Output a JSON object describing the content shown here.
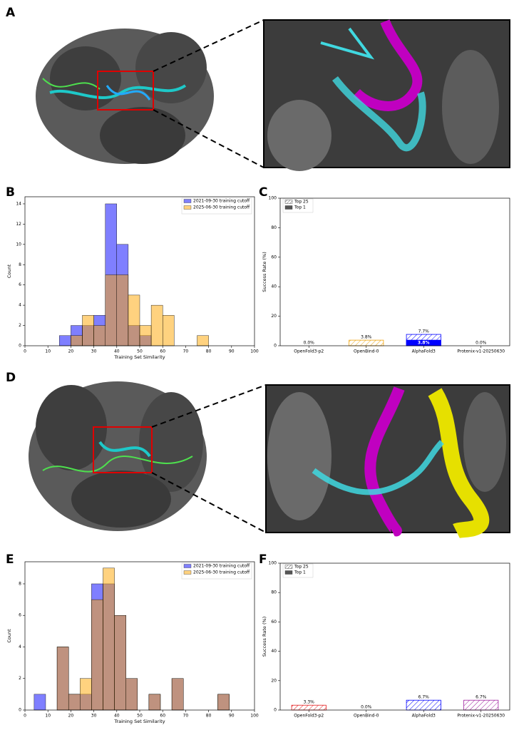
{
  "panel_labels": [
    "A",
    "B",
    "C",
    "D",
    "E",
    "F"
  ],
  "chart_data": [
    {
      "type": "histogram",
      "xlabel": "Training Set Similarity",
      "ylabel": "Count",
      "xlim": [
        0,
        100
      ],
      "xticks": [
        0,
        10,
        20,
        30,
        40,
        50,
        60,
        70,
        80,
        90,
        100
      ],
      "ylim": [
        0,
        14.7
      ],
      "yticks": [
        0,
        2,
        4,
        6,
        8,
        10,
        12,
        14
      ],
      "legend": "upper right",
      "bins": [
        0,
        5,
        10,
        15,
        20,
        25,
        30,
        35,
        40,
        45,
        50,
        55,
        60,
        65,
        70,
        75,
        80,
        85,
        90,
        95,
        100
      ],
      "series": [
        {
          "name": "2021-09-30 training cutoff",
          "color": "#0000ff",
          "values": [
            0,
            0,
            0,
            1,
            2,
            2,
            3,
            14,
            10,
            2,
            1,
            0,
            0,
            0,
            0,
            0,
            0,
            0,
            0,
            0
          ]
        },
        {
          "name": "2025-06-30 training cutoff",
          "color": "#ffa500",
          "values": [
            0,
            0,
            0,
            0,
            1,
            3,
            2,
            7,
            7,
            5,
            2,
            4,
            3,
            0,
            0,
            1,
            0,
            0,
            0,
            0
          ]
        }
      ]
    },
    {
      "type": "bar",
      "ylabel": "Success Rate (%)",
      "ylim": [
        0,
        100
      ],
      "yticks": [
        0,
        20,
        40,
        60,
        80,
        100
      ],
      "legend": "upper left",
      "categories": [
        "OpenFold3-p2",
        "OpenBind-0",
        "AlphaFold3",
        "Protenix-v1-20250630"
      ],
      "colors": [
        "#e41a1c",
        "#f0a30a",
        "#0000ff",
        "#a020a0"
      ],
      "series": [
        {
          "name": "Top 25",
          "hatch": true,
          "values": [
            0.0,
            3.8,
            7.7,
            0.0
          ],
          "value_labels": [
            "0.0%",
            "3.8%",
            "7.7%",
            "0.0%"
          ]
        },
        {
          "name": "Top 1",
          "hatch": false,
          "values": [
            0,
            0,
            3.8,
            0
          ],
          "value_labels": [
            null,
            null,
            "3.8%",
            null
          ]
        }
      ]
    },
    {
      "type": "histogram",
      "xlabel": "Training Set Similarity",
      "ylabel": "Count",
      "xlim": [
        0,
        100
      ],
      "xticks": [
        0,
        10,
        20,
        30,
        40,
        50,
        60,
        70,
        80,
        90,
        100
      ],
      "ylim": [
        0,
        9.4
      ],
      "yticks": [
        0,
        2,
        4,
        6,
        8
      ],
      "legend": "upper right",
      "bins": [
        4,
        9,
        14,
        19,
        24,
        29,
        34,
        39,
        44,
        49,
        54,
        59,
        64,
        69,
        74,
        79,
        84,
        89
      ],
      "series": [
        {
          "name": "2021-09-30 training cutoff",
          "color": "#0000ff",
          "values": [
            1,
            0,
            4,
            1,
            1,
            8,
            8,
            6,
            2,
            0,
            1,
            0,
            2,
            0,
            0,
            0,
            1
          ]
        },
        {
          "name": "2025-06-30 training cutoff",
          "color": "#ffa500",
          "values": [
            0,
            0,
            4,
            1,
            2,
            7,
            9,
            6,
            2,
            0,
            1,
            0,
            2,
            0,
            0,
            0,
            1
          ]
        }
      ]
    },
    {
      "type": "bar",
      "ylabel": "Success Rate (%)",
      "ylim": [
        0,
        100
      ],
      "yticks": [
        0,
        20,
        40,
        60,
        80,
        100
      ],
      "legend": "upper left",
      "categories": [
        "OpenFold3-p2",
        "OpenBind-0",
        "AlphaFold3",
        "Protenix-v1-20250630"
      ],
      "colors": [
        "#e41a1c",
        "#f0a30a",
        "#0000ff",
        "#a020a0"
      ],
      "series": [
        {
          "name": "Top 25",
          "hatch": true,
          "values": [
            3.3,
            0.0,
            6.7,
            6.7
          ],
          "value_labels": [
            "3.3%",
            "0.0%",
            "6.7%",
            "6.7%"
          ]
        },
        {
          "name": "Top 1",
          "hatch": false,
          "values": [
            0,
            0,
            0,
            0
          ],
          "value_labels": [
            null,
            null,
            null,
            null
          ]
        }
      ]
    }
  ]
}
